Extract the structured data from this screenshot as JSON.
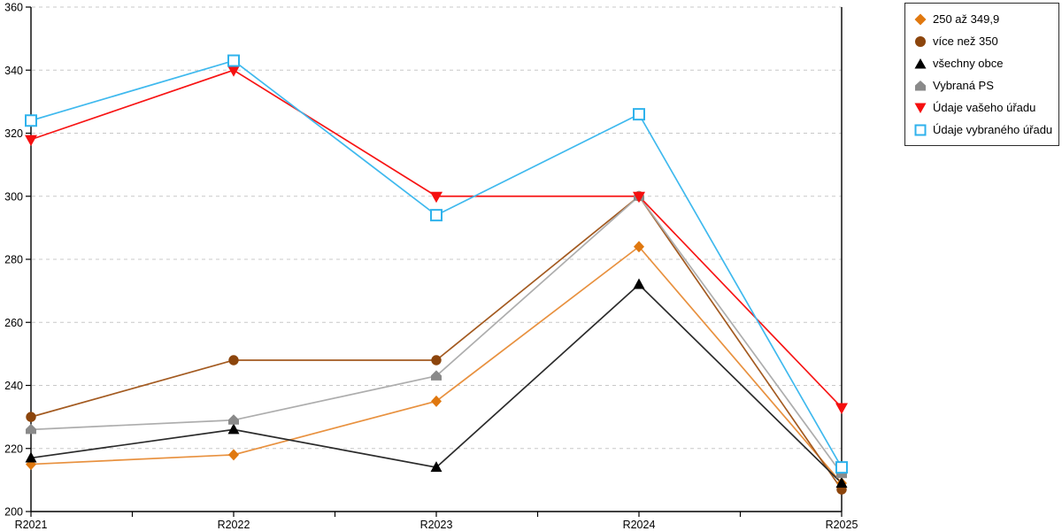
{
  "chart_data": {
    "type": "line",
    "title": "",
    "xlabel": "",
    "ylabel": "",
    "categories": [
      "R2021",
      "R2022",
      "R2023",
      "R2024",
      "R2025"
    ],
    "y_ticks": [
      200,
      220,
      240,
      260,
      280,
      300,
      320,
      340,
      360
    ],
    "ylim": [
      200,
      360
    ],
    "grid": "horizontal-dashed",
    "legend_position": "top-right",
    "series": [
      {
        "name": "250 až 349,9",
        "marker": "diamond",
        "marker_color": "#E0780F",
        "line_color": "#E8913F",
        "values": [
          215,
          218,
          235,
          284,
          209
        ]
      },
      {
        "name": "více než 350",
        "marker": "circle",
        "marker_color": "#8C450C",
        "line_color": "#A35A20",
        "values": [
          230,
          248,
          248,
          300,
          207
        ]
      },
      {
        "name": "všechny obce",
        "marker": "triangle-up",
        "marker_color": "#000000",
        "line_color": "#2B2B2B",
        "values": [
          217,
          226,
          214,
          272,
          209
        ]
      },
      {
        "name": "Vybraná PS",
        "marker": "pentagon",
        "marker_color": "#8A8A8A",
        "line_color": "#ADADAD",
        "values": [
          226,
          229,
          243,
          300,
          212
        ]
      },
      {
        "name": "Údaje vašeho úřadu",
        "marker": "triangle-down",
        "marker_color": "#F50F0F",
        "line_color": "#F71414",
        "values": [
          318,
          340,
          300,
          300,
          233
        ]
      },
      {
        "name": "Údaje vybraného úřadu",
        "marker": "square-open",
        "marker_color": "#2FB2EC",
        "line_color": "#3FB9EE",
        "values": [
          324,
          343,
          294,
          326,
          214
        ]
      }
    ],
    "colors": {
      "grid": "#C8C8C8",
      "axis": "#000000",
      "background": "#FFFFFF"
    }
  }
}
